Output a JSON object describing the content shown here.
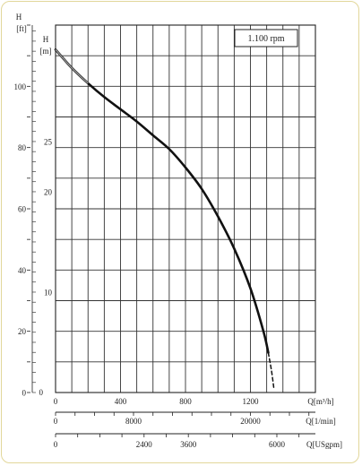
{
  "chart_data": {
    "type": "line",
    "title": "",
    "speed_label": "1.100 rpm",
    "y_axes": [
      {
        "label_top": "H",
        "label_bottom": "[ft]",
        "ticks": [
          0,
          20,
          40,
          60,
          80,
          100
        ],
        "range": [
          0,
          120
        ]
      },
      {
        "label_top": "H",
        "label_bottom": "[m]",
        "ticks": [
          10,
          20,
          25
        ],
        "range": [
          0,
          36.6
        ]
      }
    ],
    "x_axes": [
      {
        "label": "Q[m³/h]",
        "ticks": [
          0,
          400,
          800,
          1200
        ],
        "range": [
          0,
          1600
        ]
      },
      {
        "label": "Q[1/min]",
        "ticks": [
          0,
          8000,
          20000
        ],
        "range": [
          0,
          26667
        ]
      },
      {
        "label": "Q[USgpm]",
        "ticks": [
          0,
          2400,
          3600,
          6000
        ],
        "range": [
          0,
          7045
        ]
      }
    ],
    "grid": true,
    "series": [
      {
        "line_style": "solid",
        "points": [
          {
            "x": 0,
            "y": 112
          },
          {
            "x": 100,
            "y": 106
          },
          {
            "x": 200,
            "y": 101
          },
          {
            "x": 300,
            "y": 96.5
          },
          {
            "x": 400,
            "y": 92.5
          },
          {
            "x": 500,
            "y": 88.5
          },
          {
            "x": 600,
            "y": 84
          },
          {
            "x": 700,
            "y": 79.5
          },
          {
            "x": 800,
            "y": 73.5
          },
          {
            "x": 900,
            "y": 66.5
          },
          {
            "x": 1000,
            "y": 57.5
          },
          {
            "x": 1100,
            "y": 47
          },
          {
            "x": 1200,
            "y": 34
          },
          {
            "x": 1280,
            "y": 20
          },
          {
            "x": 1310,
            "y": 13
          }
        ]
      },
      {
        "line_style": "dashed",
        "points": [
          {
            "x": 1310,
            "y": 13
          },
          {
            "x": 1330,
            "y": 7
          },
          {
            "x": 1345,
            "y": 1
          }
        ]
      }
    ]
  }
}
